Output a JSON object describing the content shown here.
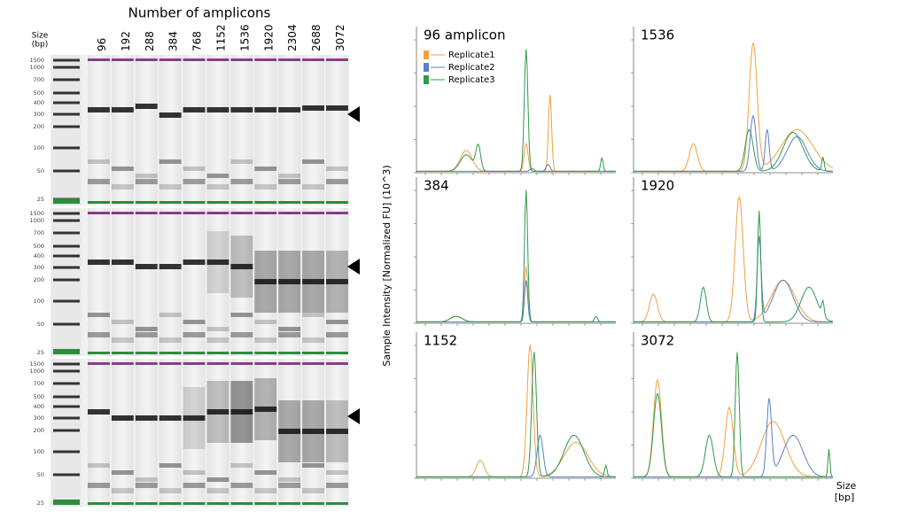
{
  "header": {
    "title": "Number of amplicons",
    "size_label": "Size",
    "size_unit": "(bp)"
  },
  "lanes": [
    "96",
    "192",
    "288",
    "384",
    "768",
    "1152",
    "1536",
    "1920",
    "2304",
    "2688",
    "3072"
  ],
  "gels": [
    {
      "ladder": [
        "1500",
        "1000",
        "700",
        "500",
        "400",
        "300",
        "200",
        "100",
        "50",
        "25"
      ]
    },
    {
      "ladder": [
        "1500",
        "1000",
        "700",
        "500",
        "400",
        "300",
        "200",
        "100",
        "50",
        "25"
      ]
    },
    {
      "ladder": [
        "1500",
        "1000",
        "700",
        "500",
        "400",
        "300",
        "200",
        "100",
        "50",
        "25"
      ]
    }
  ],
  "plots": [
    {
      "label": "96 amplicon"
    },
    {
      "label": "1536"
    },
    {
      "label": "384"
    },
    {
      "label": "1920"
    },
    {
      "label": "1152"
    },
    {
      "label": "3072"
    }
  ],
  "legend": [
    {
      "name": "Replicate1",
      "color": "#f0a040"
    },
    {
      "name": "Replicate2",
      "color": "#5b7fc8"
    },
    {
      "name": "Replicate3",
      "color": "#2e9a4a"
    }
  ],
  "y_axis_label": "Sample Intensity [Normalized FU] (10^3)",
  "x_axis_label": "Size",
  "x_axis_unit": "[bp]"
}
